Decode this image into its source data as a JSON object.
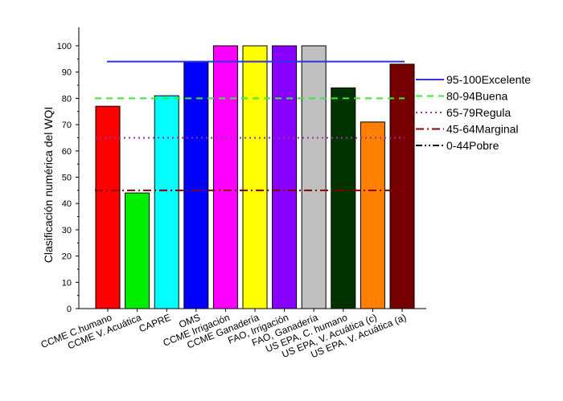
{
  "chart_data": {
    "type": "bar",
    "ylabel": "Clasificación numérica del WQI",
    "ylim": [
      0,
      110
    ],
    "yticks": [
      0,
      10,
      20,
      30,
      40,
      50,
      60,
      70,
      80,
      90,
      100
    ],
    "categories": [
      "CCME C.humano",
      "CCME V. Acuática",
      "CAPRE",
      "OMS",
      "CCME Irrigación",
      "CCME Ganadería",
      "FAO, Irrigación",
      "FAO, Ganadería",
      "US EPA, C. humano",
      "US EPA, V. Acuática (c)",
      "US EPA, V. Acuática (a)"
    ],
    "values": [
      77,
      44,
      81,
      94,
      100,
      100,
      100,
      100,
      84,
      71,
      93
    ],
    "colors": [
      "#ff0000",
      "#00ee00",
      "#00ffff",
      "#0000ff",
      "#ff00ff",
      "#ffff00",
      "#8800ff",
      "#c0c0c0",
      "#003300",
      "#ff8000",
      "#770000"
    ],
    "reference_lines": [
      {
        "label": "95-100Excelente",
        "value": 94,
        "color": "#3333dd",
        "style": "solid"
      },
      {
        "label": "80-94Buena",
        "value": 80,
        "color": "#33ee33",
        "style": "dashed"
      },
      {
        "label": "65-79Regula",
        "value": 65,
        "color": "#993399",
        "style": "dotted"
      },
      {
        "label": "45-64Marginal",
        "value": 45,
        "color": "#880000",
        "style": "dashdot"
      },
      {
        "label": "0-44Pobre",
        "value": null,
        "color": "#000000",
        "style": "dashdotdot"
      }
    ],
    "legend_position": "right",
    "grid": false
  }
}
